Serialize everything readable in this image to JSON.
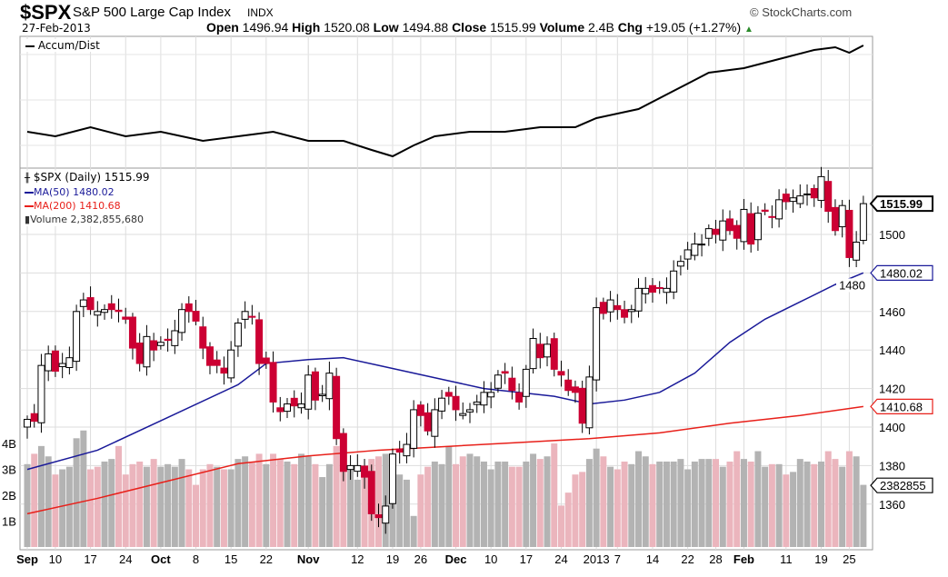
{
  "header": {
    "symbol": "$SPX",
    "name": "S&P 500 Large Cap Index",
    "exchange": "INDX",
    "date": "27-Feb-2013",
    "open_label": "Open",
    "open": "1496.94",
    "high_label": "High",
    "high": "1520.08",
    "low_label": "Low",
    "low": "1494.88",
    "close_label": "Close",
    "close": "1515.99",
    "volume_label": "Volume",
    "volume": "2.4B",
    "chg_label": "Chg",
    "chg": "+19.05 (+1.27%)",
    "copyright": "© StockCharts.com"
  },
  "legend": {
    "ad": "Accum/Dist",
    "price": "$SPX (Daily) 1515.99",
    "ma50": "MA(50) 1480.02",
    "ma200": "MA(200) 1410.68",
    "volume": "Volume 2,382,855,680"
  },
  "tags": {
    "close": "1515.99",
    "ma50": "1480.02",
    "ma200": "1410.68",
    "volume": "2382855"
  },
  "colors": {
    "up": "#000000",
    "down": "#cc0033",
    "ma50": "#1a1a99",
    "ma200": "#e8201a",
    "vol_up": "#b3b3b3",
    "vol_down": "#ebb5bd"
  },
  "chart_data": {
    "type": "candlestick",
    "title": "$SPX (Daily)",
    "ylim": [
      1340,
      1530
    ],
    "y_ticks": [
      1360,
      1380,
      1400,
      1420,
      1440,
      1460,
      1480,
      1500
    ],
    "y_tick_labels": [
      "1360",
      "1380",
      "1400",
      "1420",
      "1440",
      "1460",
      "1480",
      "1500"
    ],
    "volume_ticks": [
      "1B",
      "2B",
      "3B",
      "4B"
    ],
    "x_ticks": [
      {
        "i": 0,
        "label": "Sep"
      },
      {
        "i": 4,
        "label": "10"
      },
      {
        "i": 9,
        "label": "17"
      },
      {
        "i": 14,
        "label": "24"
      },
      {
        "i": 19,
        "label": "Oct"
      },
      {
        "i": 24,
        "label": "8"
      },
      {
        "i": 29,
        "label": "15"
      },
      {
        "i": 34,
        "label": "22"
      },
      {
        "i": 40,
        "label": "Nov"
      },
      {
        "i": 47,
        "label": "12"
      },
      {
        "i": 52,
        "label": "19"
      },
      {
        "i": 56,
        "label": "26"
      },
      {
        "i": 61,
        "label": "Dec"
      },
      {
        "i": 66,
        "label": "10"
      },
      {
        "i": 71,
        "label": "17"
      },
      {
        "i": 76,
        "label": "24"
      },
      {
        "i": 81,
        "label": "2013"
      },
      {
        "i": 84,
        "label": "7"
      },
      {
        "i": 89,
        "label": "14"
      },
      {
        "i": 94,
        "label": "22"
      },
      {
        "i": 98,
        "label": "28"
      },
      {
        "i": 102,
        "label": "Feb"
      },
      {
        "i": 108,
        "label": "11"
      },
      {
        "i": 113,
        "label": "19"
      },
      {
        "i": 117,
        "label": "25"
      }
    ],
    "close": [
      1404,
      1403,
      1432,
      1438,
      1429,
      1433,
      1436,
      1460,
      1466,
      1461,
      1460,
      1461,
      1461,
      1460,
      1456,
      1441,
      1433,
      1447,
      1440,
      1444,
      1445,
      1450,
      1461,
      1460,
      1455,
      1441,
      1432,
      1432,
      1428,
      1440,
      1454,
      1460,
      1457,
      1433,
      1433,
      1413,
      1408,
      1412,
      1411,
      1412,
      1427,
      1414,
      1417,
      1428,
      1394,
      1377,
      1380,
      1380,
      1374,
      1355,
      1353,
      1359,
      1386,
      1387,
      1391,
      1409,
      1406,
      1398,
      1409,
      1415,
      1416,
      1409,
      1407,
      1409,
      1413,
      1418,
      1418,
      1427,
      1428,
      1419,
      1413,
      1430,
      1446,
      1436,
      1443,
      1430,
      1427,
      1419,
      1418,
      1402,
      1426,
      1462,
      1459,
      1466,
      1461,
      1457,
      1461,
      1472,
      1472,
      1470,
      1472,
      1472,
      1481,
      1486,
      1492,
      1495,
      1495,
      1503,
      1500,
      1507,
      1502,
      1498,
      1513,
      1495,
      1511,
      1512,
      1509,
      1518,
      1517,
      1519,
      1520,
      1521,
      1519,
      1530,
      1512,
      1502,
      1515,
      1488,
      1496,
      1516
    ],
    "last_ohlc": {
      "open": 1496.94,
      "high": 1520.08,
      "low": 1494.88,
      "close": 1515.99
    },
    "volume_b": [
      3.2,
      3.6,
      3.9,
      3.5,
      2.8,
      3.0,
      3.1,
      4.2,
      4.5,
      3.0,
      3.1,
      3.3,
      3.4,
      3.9,
      2.8,
      3.2,
      3.3,
      3.1,
      3.4,
      3.1,
      3.2,
      3.1,
      3.4,
      3.0,
      2.4,
      3.0,
      3.2,
      3.1,
      3.0,
      3.0,
      3.4,
      3.5,
      3.3,
      3.6,
      3.2,
      3.6,
      3.4,
      3.3,
      3.2,
      3.6,
      3.5,
      3.2,
      2.7,
      3.2,
      3.9,
      3.7,
      3.0,
      2.6,
      3.1,
      3.4,
      3.5,
      3.6,
      3.0,
      2.8,
      2.6,
      1.2,
      2.8,
      3.1,
      3.3,
      3.2,
      3.9,
      3.2,
      3.5,
      3.6,
      3.5,
      3.3,
      3.0,
      3.3,
      3.3,
      3.1,
      3.1,
      3.3,
      3.6,
      3.4,
      3.5,
      4.0,
      1.6,
      2.1,
      2.8,
      2.9,
      3.4,
      3.8,
      3.5,
      3.1,
      3.0,
      3.3,
      3.2,
      3.7,
      3.5,
      3.2,
      3.3,
      3.3,
      3.3,
      3.4,
      3.0,
      3.3,
      3.4,
      3.4,
      3.4,
      3.1,
      3.3,
      3.7,
      3.4,
      3.3,
      3.7,
      3.1,
      3.2,
      3.2,
      2.8,
      2.9,
      3.4,
      3.3,
      3.2,
      3.3,
      3.7,
      3.4,
      3.1,
      3.7,
      3.5,
      2.4
    ],
    "ma50": [
      [
        0,
        1378
      ],
      [
        10,
        1388
      ],
      [
        20,
        1405
      ],
      [
        30,
        1422
      ],
      [
        34,
        1433
      ],
      [
        40,
        1435
      ],
      [
        45,
        1436
      ],
      [
        50,
        1432
      ],
      [
        55,
        1428
      ],
      [
        60,
        1424
      ],
      [
        65,
        1420
      ],
      [
        70,
        1418
      ],
      [
        75,
        1416
      ],
      [
        80,
        1412
      ],
      [
        85,
        1414
      ],
      [
        90,
        1418
      ],
      [
        95,
        1428
      ],
      [
        100,
        1444
      ],
      [
        105,
        1456
      ],
      [
        110,
        1465
      ],
      [
        115,
        1474
      ],
      [
        119,
        1480.02
      ]
    ],
    "ma200": [
      [
        0,
        1355
      ],
      [
        10,
        1363
      ],
      [
        20,
        1372
      ],
      [
        30,
        1381
      ],
      [
        40,
        1385
      ],
      [
        50,
        1388
      ],
      [
        60,
        1390
      ],
      [
        70,
        1392
      ],
      [
        80,
        1394
      ],
      [
        90,
        1397
      ],
      [
        100,
        1402
      ],
      [
        110,
        1406
      ],
      [
        119,
        1410.68
      ]
    ],
    "accum_dist": [
      [
        0,
        40
      ],
      [
        4,
        35
      ],
      [
        9,
        45
      ],
      [
        14,
        35
      ],
      [
        19,
        40
      ],
      [
        25,
        30
      ],
      [
        30,
        35
      ],
      [
        35,
        40
      ],
      [
        40,
        30
      ],
      [
        45,
        30
      ],
      [
        49,
        20
      ],
      [
        52,
        13
      ],
      [
        55,
        25
      ],
      [
        58,
        35
      ],
      [
        63,
        40
      ],
      [
        68,
        40
      ],
      [
        73,
        45
      ],
      [
        78,
        45
      ],
      [
        81,
        55
      ],
      [
        87,
        65
      ],
      [
        92,
        85
      ],
      [
        97,
        105
      ],
      [
        102,
        110
      ],
      [
        107,
        120
      ],
      [
        112,
        130
      ],
      [
        115,
        133
      ],
      [
        117,
        127
      ],
      [
        119,
        135
      ]
    ]
  }
}
